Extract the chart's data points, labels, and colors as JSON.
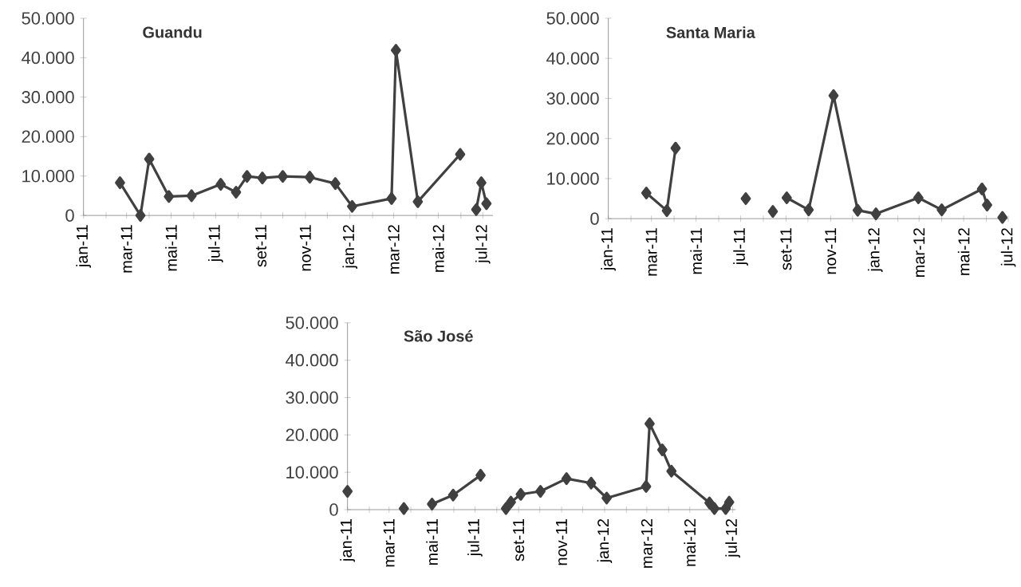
{
  "chart_data": [
    {
      "type": "line",
      "title": "Guandu",
      "marker": "diamond",
      "line_style": "solid",
      "xlim": [
        "2011-01-01",
        "2012-07-15"
      ],
      "xticks": [
        {
          "value": "2011-01-01",
          "label": "jan-11"
        },
        {
          "value": "2011-02-01",
          "label": null
        },
        {
          "value": "2011-03-01",
          "label": "mar-11"
        },
        {
          "value": "2011-04-01",
          "label": null
        },
        {
          "value": "2011-05-01",
          "label": "mai-11"
        },
        {
          "value": "2011-06-01",
          "label": null
        },
        {
          "value": "2011-07-01",
          "label": "jul-11"
        },
        {
          "value": "2011-08-01",
          "label": null
        },
        {
          "value": "2011-09-01",
          "label": "set-11"
        },
        {
          "value": "2011-10-01",
          "label": null
        },
        {
          "value": "2011-11-01",
          "label": "nov-11"
        },
        {
          "value": "2011-12-01",
          "label": null
        },
        {
          "value": "2012-01-01",
          "label": "jan-12"
        },
        {
          "value": "2012-02-01",
          "label": null
        },
        {
          "value": "2012-03-01",
          "label": "mar-12"
        },
        {
          "value": "2012-04-01",
          "label": null
        },
        {
          "value": "2012-05-01",
          "label": "mai-12"
        },
        {
          "value": "2012-06-01",
          "label": null
        },
        {
          "value": "2012-07-01",
          "label": "jul-12"
        }
      ],
      "ylim": [
        0,
        50000
      ],
      "yticks": [
        {
          "value": 0,
          "label": "0"
        },
        {
          "value": 10000,
          "label": "10.000"
        },
        {
          "value": 20000,
          "label": "20.000"
        },
        {
          "value": 30000,
          "label": "30.000"
        },
        {
          "value": 40000,
          "label": "40.000"
        },
        {
          "value": 50000,
          "label": "50.000"
        }
      ],
      "series": [
        {
          "color": "#404040",
          "x": [
            "2011-02-20",
            "2011-03-20",
            "2011-04-01",
            "2011-04-28",
            "2011-05-29",
            "2011-07-08",
            "2011-07-29",
            "2011-08-13",
            "2011-09-03",
            "2011-10-01",
            "2011-11-07",
            "2011-12-12",
            "2012-01-04",
            "2012-02-27",
            "2012-03-04",
            "2012-04-03",
            "2012-05-31",
            "2012-06-10",
            "2012-06-22",
            "2012-06-29",
            "2012-07-06"
          ],
          "values": [
            8300,
            0,
            14300,
            4800,
            5000,
            7900,
            5900,
            9900,
            9500,
            9900,
            9700,
            8100,
            2300,
            4300,
            41900,
            3500,
            15500,
            null,
            1500,
            8300,
            3000
          ]
        }
      ]
    },
    {
      "type": "line",
      "title": "Santa Maria",
      "marker": "diamond",
      "line_style": "solid",
      "xlim": [
        "2011-01-01",
        "2012-07-01"
      ],
      "xticks": [
        {
          "value": "2011-01-01",
          "label": "jan-11"
        },
        {
          "value": "2011-02-01",
          "label": null
        },
        {
          "value": "2011-03-01",
          "label": "mar-11"
        },
        {
          "value": "2011-04-01",
          "label": null
        },
        {
          "value": "2011-05-01",
          "label": "mai-11"
        },
        {
          "value": "2011-06-01",
          "label": null
        },
        {
          "value": "2011-07-01",
          "label": "jul-11"
        },
        {
          "value": "2011-08-01",
          "label": null
        },
        {
          "value": "2011-09-01",
          "label": "set-11"
        },
        {
          "value": "2011-10-01",
          "label": null
        },
        {
          "value": "2011-11-01",
          "label": "nov-11"
        },
        {
          "value": "2011-12-01",
          "label": null
        },
        {
          "value": "2012-01-01",
          "label": "jan-12"
        },
        {
          "value": "2012-02-01",
          "label": null
        },
        {
          "value": "2012-03-01",
          "label": "mar-12"
        },
        {
          "value": "2012-04-01",
          "label": null
        },
        {
          "value": "2012-05-01",
          "label": "mai-12"
        },
        {
          "value": "2012-06-01",
          "label": null
        },
        {
          "value": "2012-07-01",
          "label": "jul-12"
        }
      ],
      "ylim": [
        0,
        50000
      ],
      "yticks": [
        {
          "value": 0,
          "label": "0"
        },
        {
          "value": 10000,
          "label": "10.000"
        },
        {
          "value": 20000,
          "label": "20.000"
        },
        {
          "value": 30000,
          "label": "30.000"
        },
        {
          "value": 40000,
          "label": "40.000"
        },
        {
          "value": 50000,
          "label": "50.000"
        }
      ],
      "series": [
        {
          "color": "#404040",
          "x": [
            "2011-02-22",
            "2011-03-22",
            "2011-04-03",
            "2011-05-20",
            "2011-07-08",
            "2011-07-25",
            "2011-08-14",
            "2011-08-24",
            "2011-09-02",
            "2011-10-02",
            "2011-11-05",
            "2011-12-08",
            "2012-01-02",
            "2012-02-29",
            "2012-04-01",
            "2012-05-26",
            "2012-06-02",
            "2012-06-12",
            "2012-06-23"
          ],
          "values": [
            6400,
            2000,
            17600,
            null,
            5000,
            null,
            1800,
            null,
            5200,
            2200,
            30700,
            2100,
            1200,
            5200,
            2200,
            7400,
            3400,
            null,
            300
          ]
        }
      ]
    },
    {
      "type": "line",
      "title": "São José",
      "marker": "diamond",
      "line_style": "solid",
      "xlim": [
        "2011-01-01",
        "2012-07-05"
      ],
      "xticks": [
        {
          "value": "2011-01-01",
          "label": "jan-11"
        },
        {
          "value": "2011-02-01",
          "label": null
        },
        {
          "value": "2011-03-01",
          "label": "mar-11"
        },
        {
          "value": "2011-04-01",
          "label": null
        },
        {
          "value": "2011-05-01",
          "label": "mai-11"
        },
        {
          "value": "2011-06-01",
          "label": null
        },
        {
          "value": "2011-07-01",
          "label": "jul-11"
        },
        {
          "value": "2011-08-01",
          "label": null
        },
        {
          "value": "2011-09-01",
          "label": "set-11"
        },
        {
          "value": "2011-10-01",
          "label": null
        },
        {
          "value": "2011-11-01",
          "label": "nov-11"
        },
        {
          "value": "2011-12-01",
          "label": null
        },
        {
          "value": "2012-01-01",
          "label": "jan-12"
        },
        {
          "value": "2012-02-01",
          "label": null
        },
        {
          "value": "2012-03-01",
          "label": "mar-12"
        },
        {
          "value": "2012-04-01",
          "label": null
        },
        {
          "value": "2012-05-01",
          "label": "mai-12"
        },
        {
          "value": "2012-06-01",
          "label": null
        },
        {
          "value": "2012-07-01",
          "label": "jul-12"
        }
      ],
      "ylim": [
        0,
        50000
      ],
      "yticks": [
        {
          "value": 0,
          "label": "0"
        },
        {
          "value": 10000,
          "label": "10.000"
        },
        {
          "value": 20000,
          "label": "20.000"
        },
        {
          "value": 30000,
          "label": "30.000"
        },
        {
          "value": 40000,
          "label": "40.000"
        },
        {
          "value": 50000,
          "label": "50.000"
        }
      ],
      "series": [
        {
          "color": "#404040",
          "x": [
            "2011-01-01",
            "2011-02-10",
            "2011-03-22",
            "2011-04-10",
            "2011-05-01",
            "2011-05-31",
            "2011-07-09",
            "2011-07-25",
            "2011-08-14",
            "2011-08-21",
            "2011-09-04",
            "2011-10-02",
            "2011-11-08",
            "2011-12-13",
            "2012-01-04",
            "2012-02-29",
            "2012-03-05",
            "2012-03-23",
            "2012-04-05",
            "2012-05-29",
            "2012-06-05",
            "2012-06-21",
            "2012-06-26"
          ],
          "values": [
            4900,
            null,
            300,
            null,
            1500,
            3900,
            9200,
            null,
            300,
            2000,
            4100,
            4900,
            8300,
            7100,
            3100,
            6200,
            23000,
            16000,
            10300,
            1800,
            300,
            300,
            2000
          ]
        }
      ]
    }
  ]
}
